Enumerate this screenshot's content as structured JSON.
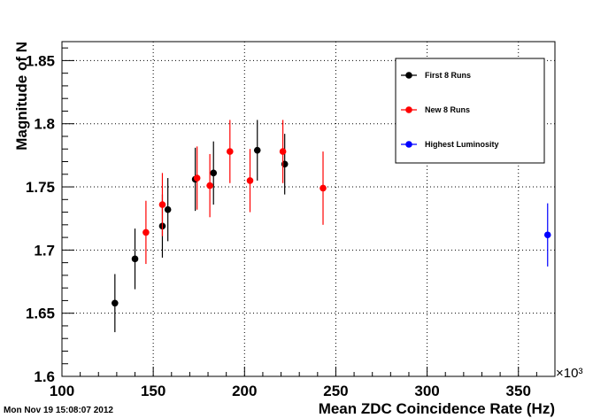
{
  "timestamp": "Mon Nov 19 15:08:07 2012",
  "chart_data": {
    "type": "scatter",
    "title": "",
    "xlabel": "Mean ZDC Coincidence Rate (Hz)",
    "ylabel": "Magnitude of N",
    "x_exponent_label": "×10³",
    "xlim": [
      100,
      370
    ],
    "ylim": [
      1.6,
      1.865
    ],
    "x_ticks": [
      "100",
      "150",
      "200",
      "250",
      "300",
      "350"
    ],
    "y_ticks": [
      "1.6",
      "1.65",
      "1.7",
      "1.75",
      "1.8",
      "1.85"
    ],
    "grid": true,
    "legend_position": "top-right",
    "series": [
      {
        "name": "First 8 Runs",
        "color": "#000000",
        "points": [
          {
            "x": 129,
            "y": 1.658,
            "err": 0.023
          },
          {
            "x": 140,
            "y": 1.693,
            "err": 0.024
          },
          {
            "x": 155,
            "y": 1.719,
            "err": 0.025
          },
          {
            "x": 158,
            "y": 1.732,
            "err": 0.025
          },
          {
            "x": 173,
            "y": 1.756,
            "err": 0.025
          },
          {
            "x": 183,
            "y": 1.761,
            "err": 0.025
          },
          {
            "x": 207,
            "y": 1.779,
            "err": 0.024
          },
          {
            "x": 222,
            "y": 1.768,
            "err": 0.024
          }
        ]
      },
      {
        "name": "New 8 Runs",
        "color": "#ff0000",
        "points": [
          {
            "x": 146,
            "y": 1.714,
            "err": 0.025
          },
          {
            "x": 155,
            "y": 1.736,
            "err": 0.025
          },
          {
            "x": 174,
            "y": 1.757,
            "err": 0.025
          },
          {
            "x": 181,
            "y": 1.751,
            "err": 0.025
          },
          {
            "x": 192,
            "y": 1.778,
            "err": 0.025
          },
          {
            "x": 203,
            "y": 1.755,
            "err": 0.025
          },
          {
            "x": 221,
            "y": 1.778,
            "err": 0.025
          },
          {
            "x": 243,
            "y": 1.749,
            "err": 0.029
          }
        ]
      },
      {
        "name": "Highest Luminosity",
        "color": "#0000ff",
        "points": [
          {
            "x": 366,
            "y": 1.712,
            "err": 0.025
          }
        ]
      }
    ]
  }
}
